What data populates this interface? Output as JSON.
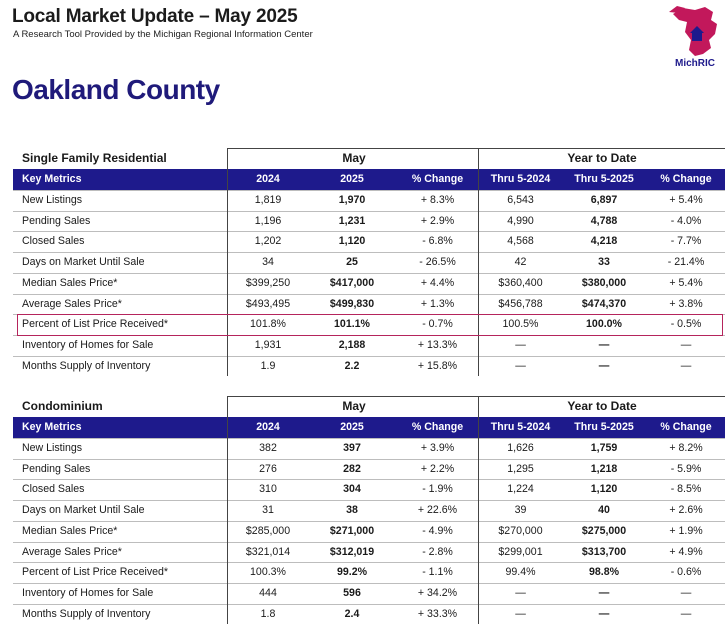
{
  "header": {
    "title": "Local Market Update – May 2025",
    "subtitle": "A Research Tool Provided by the Michigan Regional Information Center",
    "logo_text": "MichRIC"
  },
  "county": "Oakland County",
  "colors": {
    "header_bg": "#1e1a8c",
    "county_title": "#1f1a7a",
    "highlight": "#b5245c",
    "logo": "#c2185b"
  },
  "tables": [
    {
      "section": "Single Family Residential",
      "group_may": "May",
      "group_ytd": "Year to Date",
      "columns": [
        "Key Metrics",
        "2024",
        "2025",
        "% Change",
        "Thru 5-2024",
        "Thru 5-2025",
        "% Change"
      ],
      "rows": [
        [
          "New Listings",
          "1,819",
          "1,970",
          "+ 8.3%",
          "6,543",
          "6,897",
          "+ 5.4%"
        ],
        [
          "Pending Sales",
          "1,196",
          "1,231",
          "+ 2.9%",
          "4,990",
          "4,788",
          "- 4.0%"
        ],
        [
          "Closed Sales",
          "1,202",
          "1,120",
          "- 6.8%",
          "4,568",
          "4,218",
          "- 7.7%"
        ],
        [
          "Days on Market Until Sale",
          "34",
          "25",
          "- 26.5%",
          "42",
          "33",
          "- 21.4%"
        ],
        [
          "Median Sales Price*",
          "$399,250",
          "$417,000",
          "+ 4.4%",
          "$360,400",
          "$380,000",
          "+ 5.4%"
        ],
        [
          "Average Sales Price*",
          "$493,495",
          "$499,830",
          "+ 1.3%",
          "$456,788",
          "$474,370",
          "+ 3.8%"
        ],
        [
          "Percent of List Price Received*",
          "101.8%",
          "101.1%",
          "- 0.7%",
          "100.5%",
          "100.0%",
          "- 0.5%"
        ],
        [
          "Inventory of Homes for Sale",
          "1,931",
          "2,188",
          "+ 13.3%",
          "—",
          "—",
          "—"
        ],
        [
          "Months Supply of Inventory",
          "1.9",
          "2.2",
          "+ 15.8%",
          "—",
          "—",
          "—"
        ]
      ]
    },
    {
      "section": "Condominium",
      "group_may": "May",
      "group_ytd": "Year to Date",
      "columns": [
        "Key Metrics",
        "2024",
        "2025",
        "% Change",
        "Thru 5-2024",
        "Thru 5-2025",
        "% Change"
      ],
      "rows": [
        [
          "New Listings",
          "382",
          "397",
          "+ 3.9%",
          "1,626",
          "1,759",
          "+ 8.2%"
        ],
        [
          "Pending Sales",
          "276",
          "282",
          "+ 2.2%",
          "1,295",
          "1,218",
          "- 5.9%"
        ],
        [
          "Closed Sales",
          "310",
          "304",
          "- 1.9%",
          "1,224",
          "1,120",
          "- 8.5%"
        ],
        [
          "Days on Market Until Sale",
          "31",
          "38",
          "+ 22.6%",
          "39",
          "40",
          "+ 2.6%"
        ],
        [
          "Median Sales Price*",
          "$285,000",
          "$271,000",
          "- 4.9%",
          "$270,000",
          "$275,000",
          "+ 1.9%"
        ],
        [
          "Average Sales Price*",
          "$321,014",
          "$312,019",
          "- 2.8%",
          "$299,001",
          "$313,700",
          "+ 4.9%"
        ],
        [
          "Percent of List Price Received*",
          "100.3%",
          "99.2%",
          "- 1.1%",
          "99.4%",
          "98.8%",
          "- 0.6%"
        ],
        [
          "Inventory of Homes for Sale",
          "444",
          "596",
          "+ 34.2%",
          "—",
          "—",
          "—"
        ],
        [
          "Months Supply of Inventory",
          "1.8",
          "2.4",
          "+ 33.3%",
          "—",
          "—",
          "—"
        ]
      ]
    }
  ]
}
